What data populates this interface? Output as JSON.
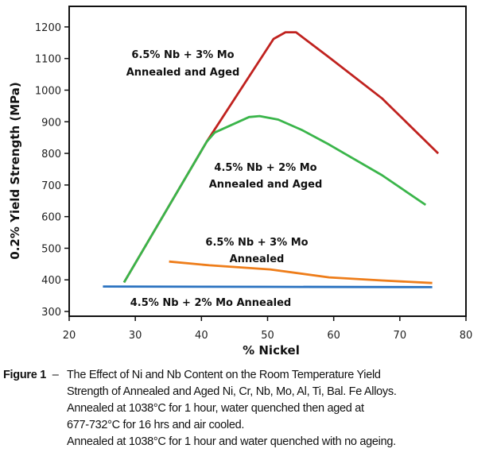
{
  "chart_data": {
    "type": "line",
    "xlabel": "% Nickel",
    "ylabel": "0.2% Yield Strength (MPa)",
    "xlim": [
      20,
      80
    ],
    "ylim": [
      285,
      1265
    ],
    "xticks": [
      20,
      30,
      40,
      50,
      60,
      70,
      80
    ],
    "yticks": [
      300,
      400,
      500,
      600,
      700,
      800,
      900,
      1000,
      1100,
      1200
    ],
    "grid": false,
    "series": [
      {
        "name": "6.5% Nb + 3% Mo Annealed and Aged",
        "color": "#c0221f",
        "x": [
          28.3,
          40.8,
          50.9,
          52.7,
          54.3,
          59.3,
          67.3,
          75.8
        ],
        "y": [
          392,
          837,
          1162,
          1183,
          1183,
          1104,
          974,
          800
        ]
      },
      {
        "name": "4.5% Nb + 2% Mo Annealed and Aged",
        "color": "#3ab54a",
        "x": [
          28.3,
          40.8,
          42.0,
          47.2,
          48.8,
          51.6,
          55.2,
          59.3,
          67.3,
          73.9
        ],
        "y": [
          392,
          837,
          866,
          915,
          918,
          907,
          874,
          828,
          731,
          637
        ]
      },
      {
        "name": "6.5% Nb + 3% Mo Annealed",
        "color": "#ee7d1a",
        "x": [
          35.1,
          41.2,
          50.4,
          59.3,
          67.3,
          74.9
        ],
        "y": [
          458,
          446,
          433,
          408,
          398,
          390
        ]
      },
      {
        "name": "4.5% Nb + 2% Mo Annealed",
        "color": "#2a72c0",
        "x": [
          25.1,
          50,
          74.9
        ],
        "y": [
          379,
          378,
          377
        ]
      }
    ],
    "annotations": [
      {
        "lines": [
          "6.5% Nb + 3% Mo",
          "Annealed and Aged"
        ]
      },
      {
        "lines": [
          "4.5% Nb + 2% Mo",
          "Annealed and Aged"
        ]
      },
      {
        "lines": [
          "6.5% Nb + 3% Mo",
          "Annealed"
        ]
      },
      {
        "lines": [
          "4.5% Nb + 2% Mo Annealed"
        ]
      }
    ]
  },
  "caption": {
    "label": "Figure 1",
    "dash": "–",
    "lines": [
      "The Effect of Ni and Nb Content on the Room Temperature Yield",
      "Strength of Annealed and Aged Ni, Cr, Nb, Mo, Al, Ti, Bal. Fe Alloys.",
      "Annealed at 1038°C for 1 hour, water quenched then aged at",
      "677-732°C for 16 hrs and air cooled.",
      "Annealed at 1038°C for 1 hour and water quenched with no ageing."
    ]
  }
}
